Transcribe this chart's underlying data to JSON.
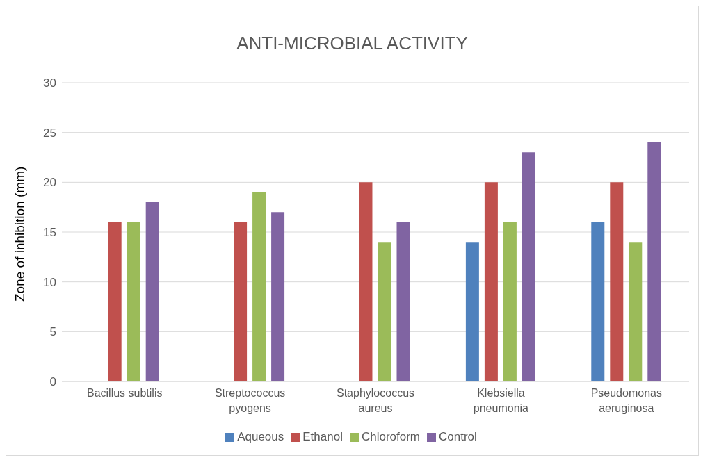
{
  "chart_data": {
    "type": "bar",
    "title": "ANTI-MICROBIAL ACTIVITY",
    "ylabel": "Zone of inhibition (mm)",
    "categories": [
      "Bacillus subtilis",
      "Streptococcus pyogens",
      "Staphylococcus aureus",
      "Klebsiella pneumonia",
      "Pseudomonas aeruginosa"
    ],
    "series": [
      {
        "name": "Aqueous",
        "color": "#4f81bd",
        "values": [
          0,
          0,
          0,
          14,
          16
        ]
      },
      {
        "name": "Ethanol",
        "color": "#c0504d",
        "values": [
          16,
          16,
          20,
          20,
          20
        ]
      },
      {
        "name": "Chloroform",
        "color": "#9bbb59",
        "values": [
          16,
          19,
          14,
          16,
          14
        ]
      },
      {
        "name": "Control",
        "color": "#8064a2",
        "values": [
          18,
          17,
          16,
          23,
          24
        ]
      }
    ],
    "ylim": [
      0,
      30
    ],
    "yticks": [
      0,
      5,
      10,
      15,
      20,
      25,
      30
    ],
    "grid": "y",
    "legend": "bottom"
  }
}
